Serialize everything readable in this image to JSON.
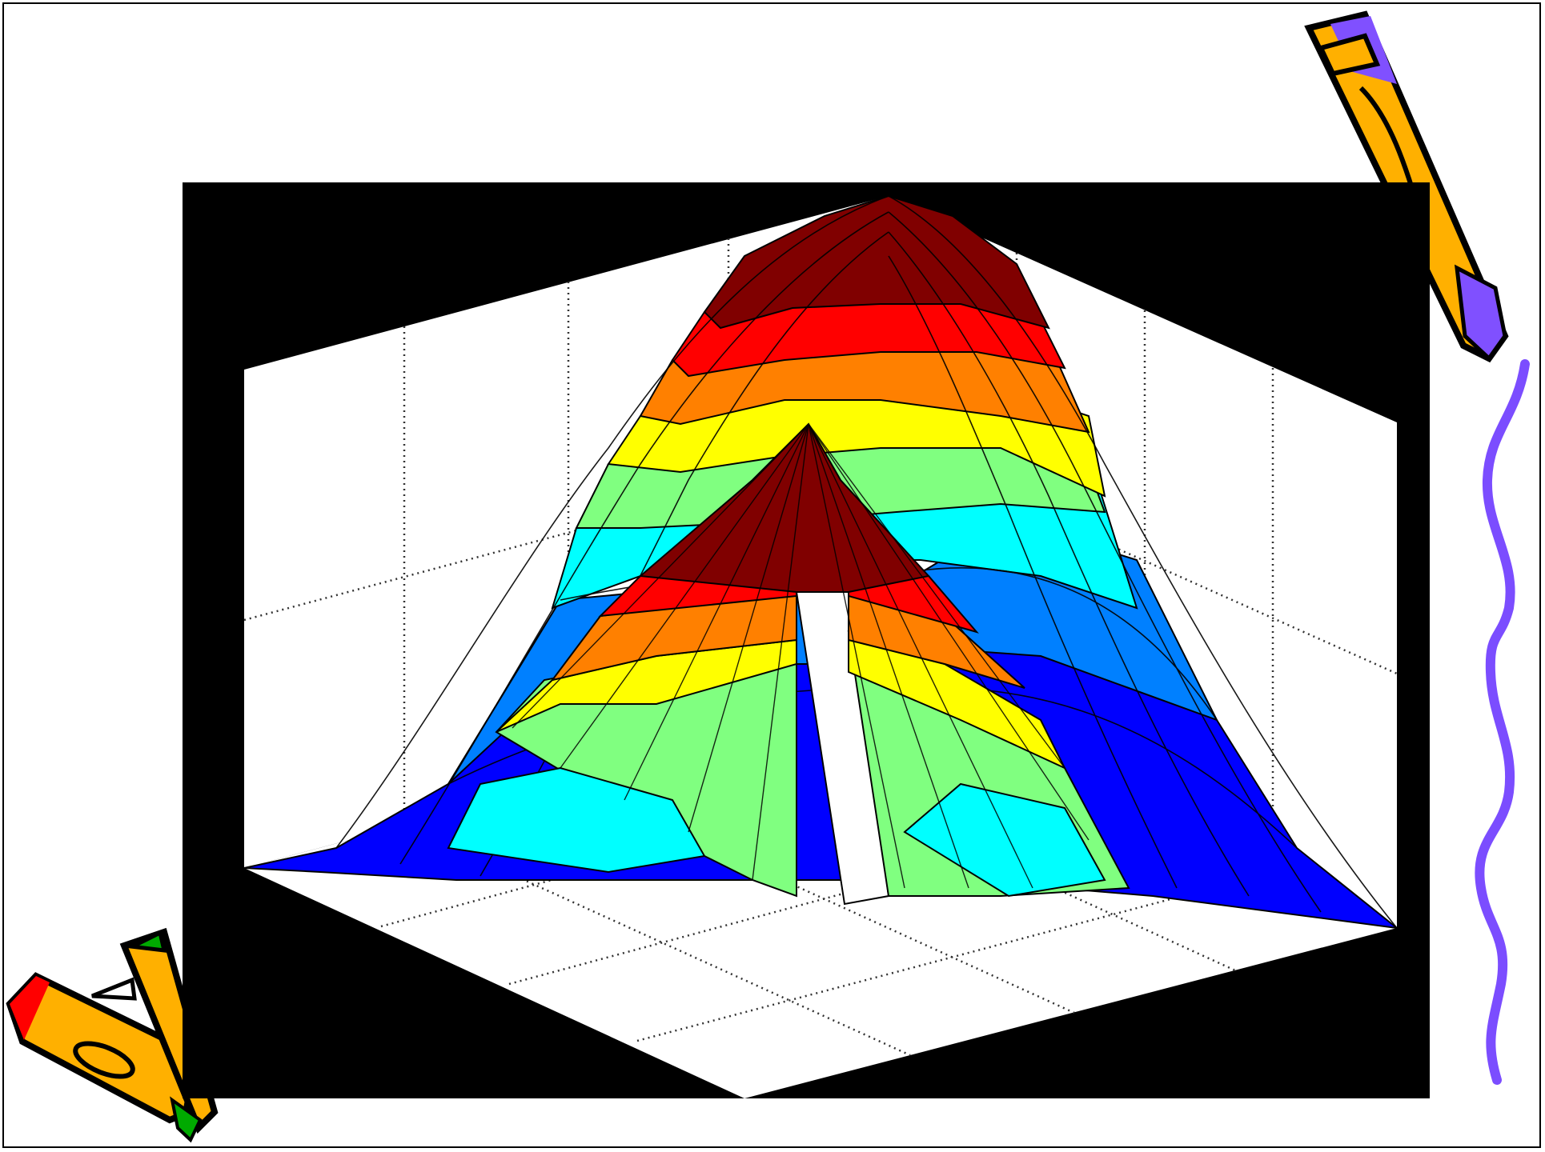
{
  "slide": {
    "background": "#ffffff",
    "decorations": [
      "pencil-icon",
      "crayon-icon",
      "wavy-line"
    ]
  },
  "chart_data": {
    "type": "surface",
    "title": "",
    "xlabel": "",
    "ylabel": "",
    "zlabel": "",
    "grid": true,
    "colormap": [
      "#00008f",
      "#0000ff",
      "#0080ff",
      "#00ffff",
      "#80ff80",
      "#ffff00",
      "#ff8000",
      "#ff0000",
      "#800000"
    ],
    "surfaces": [
      {
        "shape": "wide gaussian peak with notch",
        "peak_level": 1.0
      },
      {
        "shape": "inner cone with notch",
        "peak_level": 1.0
      }
    ]
  },
  "colors": {
    "plot_frame": "#000000",
    "pencil_body": "#ffb000",
    "pencil_accent": "#8050ff",
    "crayon_cap_green": "#00aa00",
    "crayon_tip_red": "#ff0000",
    "wavy_line": "#7b4dff"
  }
}
